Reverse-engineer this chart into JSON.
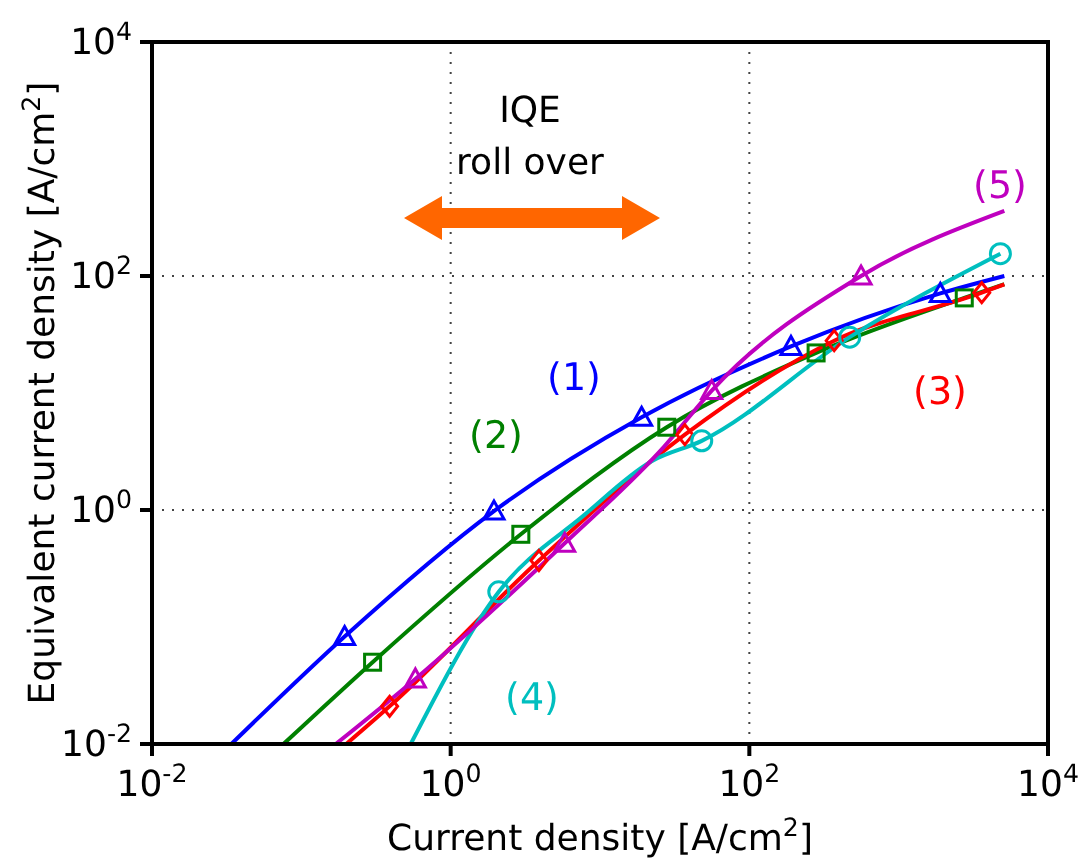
{
  "chart_data": {
    "type": "line",
    "xlabel": "Current density [A/cm$^{2}$]",
    "ylabel": "Equivalent current density [A/cm$^{2}$]",
    "log": "xy",
    "grid": true,
    "xlim": [
      0.01,
      10000
    ],
    "ylim": [
      0.01,
      10000
    ],
    "xticks": [
      {
        "value": 0.01,
        "label": "10$^{-2}$"
      },
      {
        "value": 1,
        "label": "10$^{0}$"
      },
      {
        "value": 100,
        "label": "10$^{2}$"
      },
      {
        "value": 10000,
        "label": "10$^{4}$"
      }
    ],
    "yticks": [
      {
        "value": 0.01,
        "label": "10$^{-2}$"
      },
      {
        "value": 1,
        "label": "10$^{0}$"
      },
      {
        "value": 100,
        "label": "10$^{2}$"
      },
      {
        "value": 10000,
        "label": "10$^{4}$"
      }
    ],
    "series": [
      {
        "name": "(1)",
        "marker": "none",
        "color": "#0000ff",
        "x": [
          0.034,
          0.195,
          1.95,
          19,
          190,
          1900,
          5100
        ],
        "values": [
          0.01,
          0.083,
          0.98,
          6.2,
          25,
          71,
          100
        ]
      },
      {
        "name": "(2)",
        "marker": "none",
        "color": "#008000",
        "x": [
          0.076,
          0.3,
          2.95,
          28,
          280,
          2750,
          5100
        ],
        "values": [
          0.01,
          0.05,
          0.62,
          5.1,
          22,
          65,
          85
        ]
      },
      {
        "name": "(3)",
        "marker": "none",
        "color": "#ff0000",
        "x": [
          0.2,
          0.39,
          3.9,
          37,
          370,
          3600,
          5100
        ],
        "values": [
          0.01,
          0.021,
          0.37,
          4.4,
          28,
          72,
          85
        ]
      },
      {
        "name": "(4)",
        "marker": "none",
        "color": "#00bfbf",
        "x": [
          0.54,
          2.1,
          7.8,
          22,
          48,
          470,
          4800
        ],
        "values": [
          0.01,
          0.2,
          0.9,
          2.6,
          3.9,
          30,
          155
        ]
      },
      {
        "name": "(5)",
        "marker": "none",
        "color": "#bf00bf",
        "x": [
          0.17,
          0.58,
          5.8,
          27,
          56,
          560,
          5100
        ],
        "values": [
          0.01,
          0.036,
          0.52,
          3.5,
          10.5,
          100,
          360
        ]
      },
      {
        "type": "scatter",
        "marker": "triangle",
        "color": "#0000ff",
        "x": [
          0.195,
          1.95,
          19,
          190,
          1900
        ],
        "values": [
          0.083,
          0.98,
          6.2,
          25,
          71
        ]
      },
      {
        "type": "scatter",
        "marker": "square",
        "color": "#008000",
        "x": [
          0.3,
          2.95,
          28,
          280,
          2750
        ],
        "values": [
          0.05,
          0.62,
          5.1,
          22,
          65
        ]
      },
      {
        "type": "scatter",
        "marker": "diamond",
        "color": "#ff0000",
        "x": [
          0.39,
          3.9,
          37,
          370,
          3600
        ],
        "values": [
          0.021,
          0.37,
          4.4,
          28,
          72
        ]
      },
      {
        "type": "scatter",
        "marker": "circle",
        "color": "#00bfbf",
        "x": [
          2.1,
          48,
          470,
          4800
        ],
        "values": [
          0.2,
          3.9,
          30,
          155
        ]
      },
      {
        "type": "scatter",
        "marker": "triangle",
        "color": "#bf00bf",
        "x": [
          0.58,
          5.8,
          56,
          560
        ],
        "values": [
          0.036,
          0.52,
          10.5,
          100
        ]
      }
    ],
    "annotations": [
      "IQE\nroll over"
    ]
  }
}
